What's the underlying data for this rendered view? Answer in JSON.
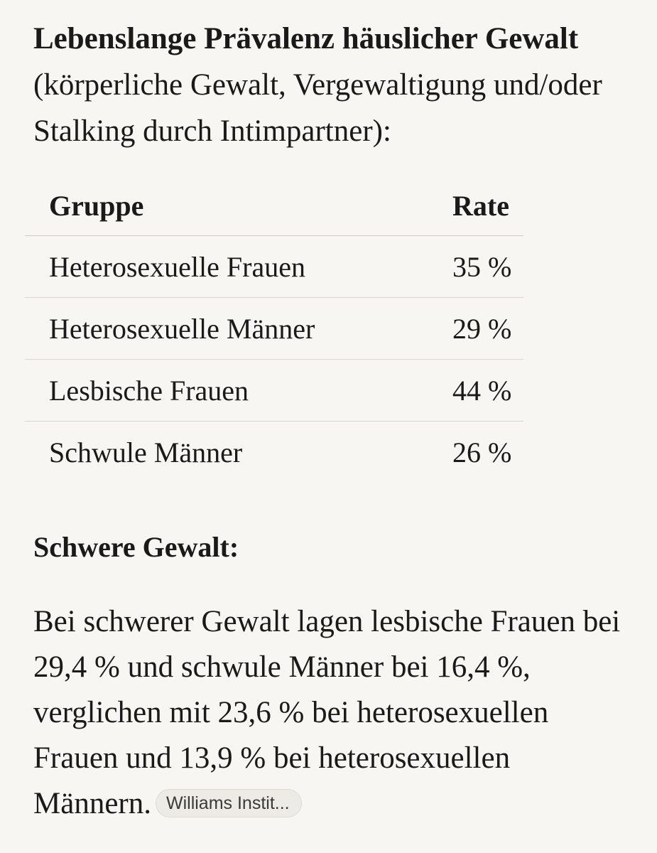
{
  "intro": {
    "bold_text": "Lebenslange Prävalenz häuslicher Gewalt",
    "rest_text": " (körperliche Gewalt, Vergewaltigung und/oder Stalking durch Intimpartner):"
  },
  "table": {
    "headers": [
      "Gruppe",
      "Rate"
    ],
    "rows": [
      {
        "group": "Heterosexuelle Frauen",
        "rate": "35 %"
      },
      {
        "group": "Heterosexuelle Männer",
        "rate": "29 %"
      },
      {
        "group": "Lesbische Frauen",
        "rate": "44 %"
      },
      {
        "group": "Schwule Männer",
        "rate": "26 %"
      }
    ]
  },
  "severe": {
    "heading": "Schwere Gewalt:",
    "paragraph": "Bei schwerer Gewalt lagen lesbische Frauen bei 29,4 % und schwule Männer bei 16,4 %, verglichen mit 23,6 % bei heterosexuellen Frauen und 13,9 % bei heterosexuellen Männern.",
    "citation_label": "Williams Instit..."
  }
}
